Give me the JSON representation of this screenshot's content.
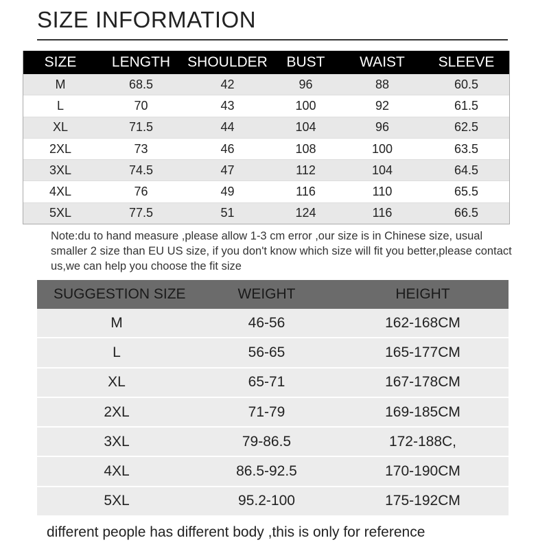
{
  "title": "SIZE INFORMATION",
  "size_table": {
    "headers": [
      "SIZE",
      "LENGTH",
      "SHOULDER",
      "BUST",
      "WAIST",
      "SLEEVE"
    ],
    "rows": [
      [
        "M",
        "68.5",
        "42",
        "96",
        "88",
        "60.5"
      ],
      [
        "L",
        "70",
        "43",
        "100",
        "92",
        "61.5"
      ],
      [
        "XL",
        "71.5",
        "44",
        "104",
        "96",
        "62.5"
      ],
      [
        "2XL",
        "73",
        "46",
        "108",
        "100",
        "63.5"
      ],
      [
        "3XL",
        "74.5",
        "47",
        "112",
        "104",
        "64.5"
      ],
      [
        "4XL",
        "76",
        "49",
        "116",
        "110",
        "65.5"
      ],
      [
        "5XL",
        "77.5",
        "51",
        "124",
        "116",
        "66.5"
      ]
    ]
  },
  "note": "Note:du to hand measure ,please allow 1-3 cm error ,our size is in Chinese size, usual smaller 2 size than EU US size, if you don't know which size will fit you better,please contact us,we can help you choose the fit size",
  "suggestion_table": {
    "headers": [
      "SUGGESTION SIZE",
      "WEIGHT",
      "HEIGHT"
    ],
    "rows": [
      [
        "M",
        "46-56",
        "162-168CM"
      ],
      [
        "L",
        "56-65",
        "165-177CM"
      ],
      [
        "XL",
        "65-71",
        "167-178CM"
      ],
      [
        "2XL",
        "71-79",
        "169-185CM"
      ],
      [
        "3XL",
        "79-86.5",
        "172-188C,"
      ],
      [
        "4XL",
        "86.5-92.5",
        "170-190CM"
      ],
      [
        "5XL",
        "95.2-100",
        "175-192CM"
      ]
    ]
  },
  "footer": "different people has different body ,this is only for reference"
}
